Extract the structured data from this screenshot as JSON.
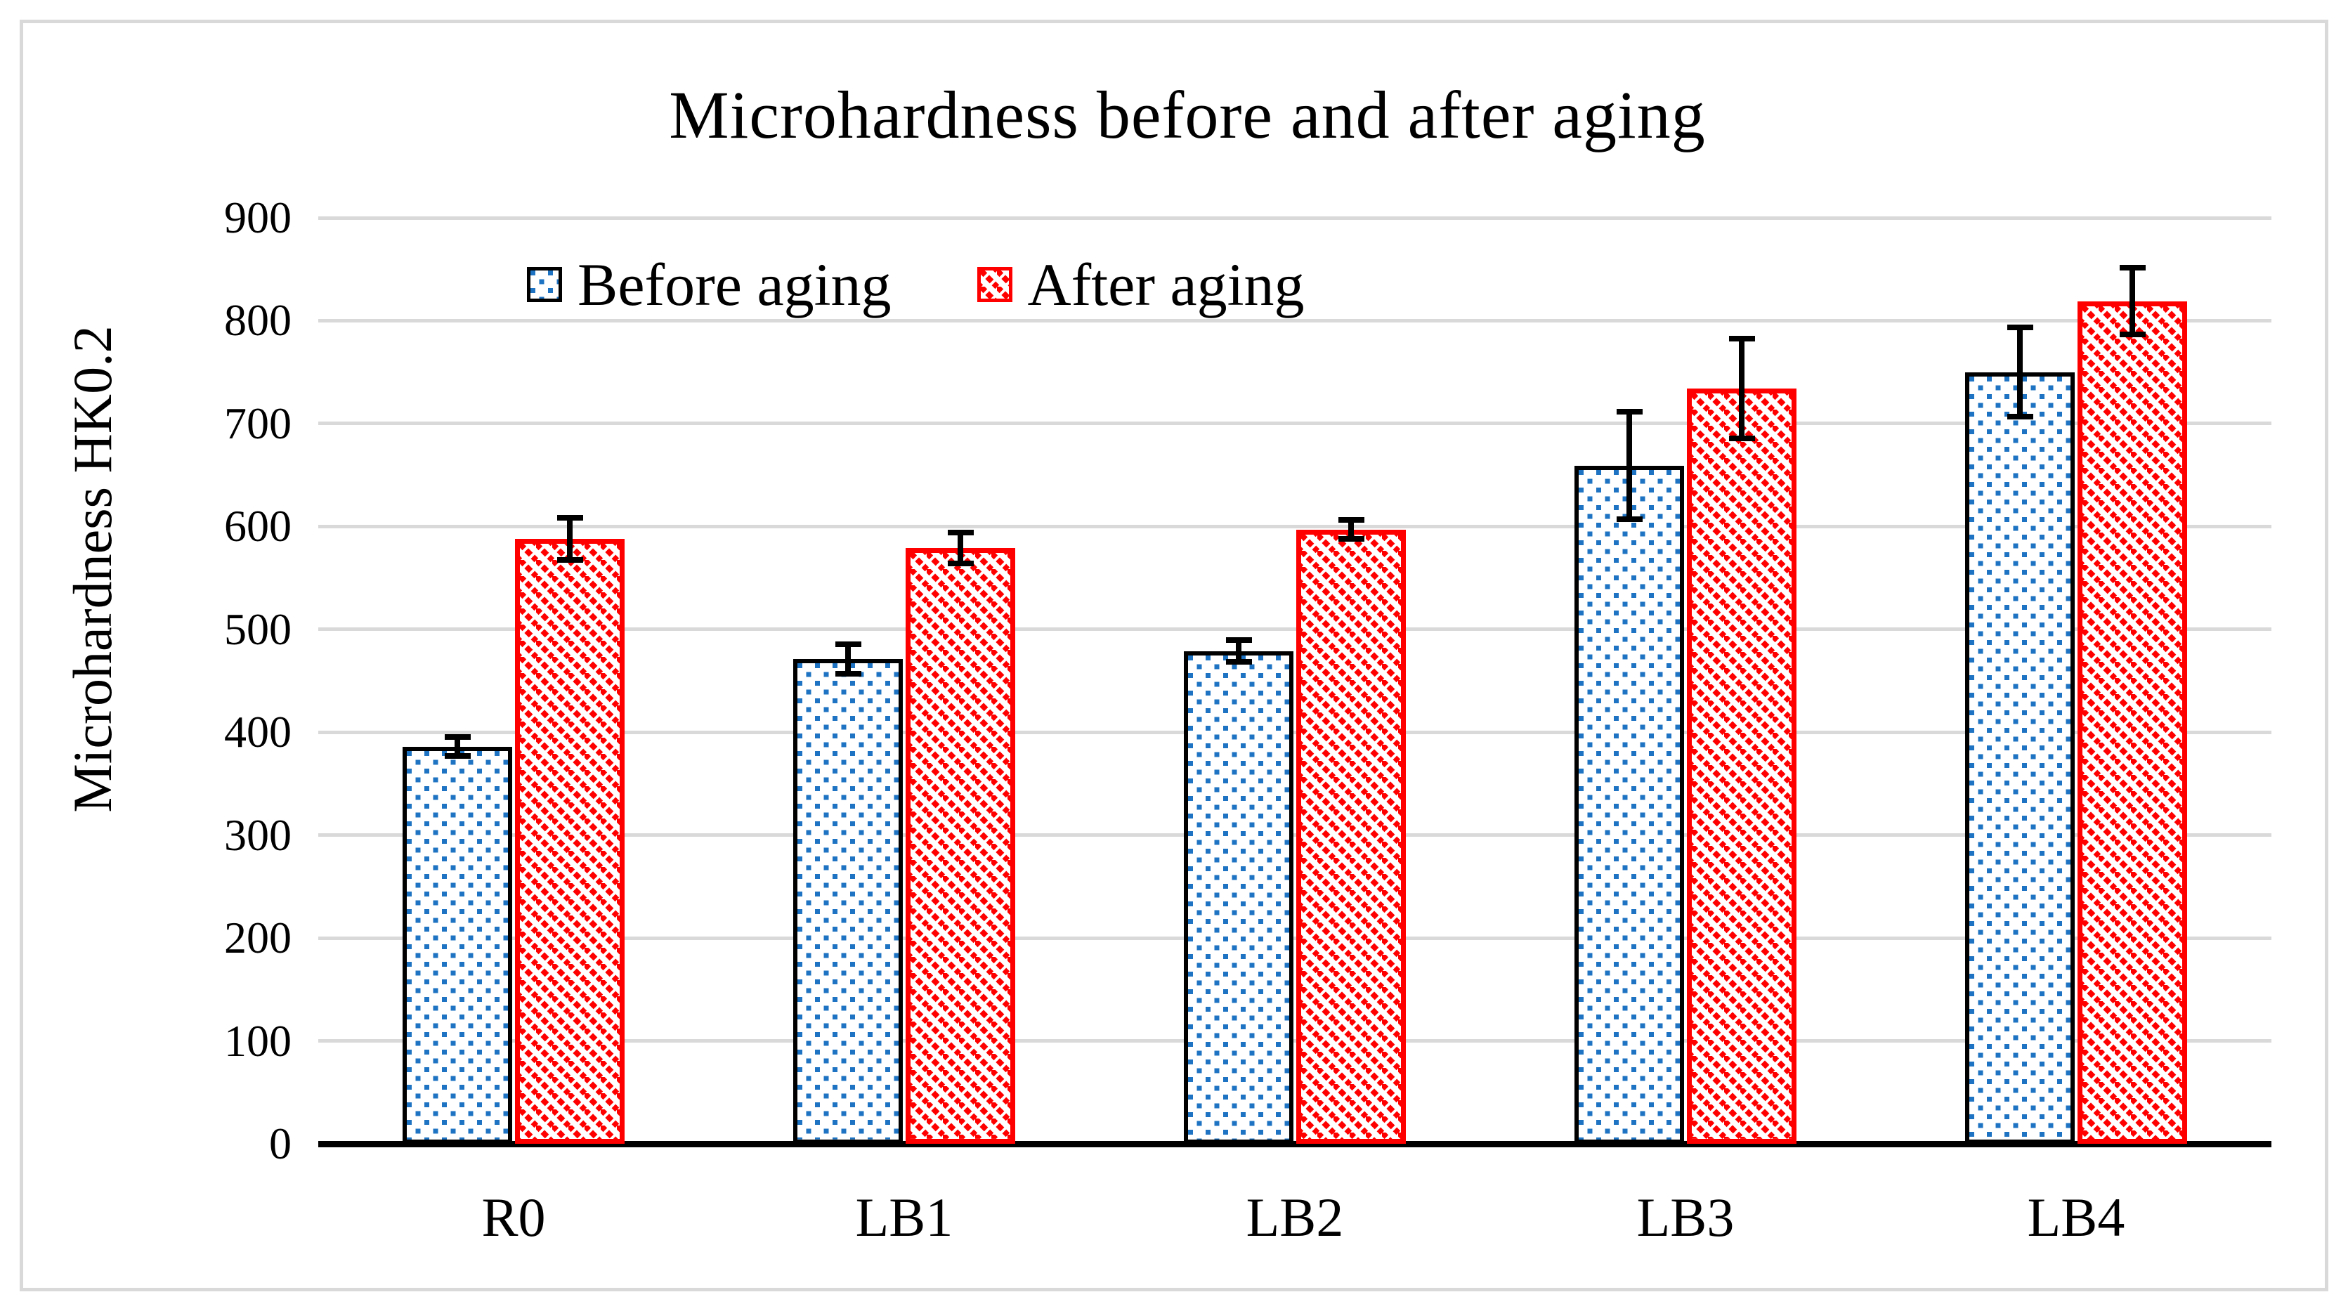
{
  "figure": {
    "title": "Microhardness before and after aging"
  },
  "legend": {
    "items": [
      {
        "label": "Before aging",
        "swatch": "blue-dotted-square"
      },
      {
        "label": "After aging",
        "swatch": "red-diagonal-hatch"
      }
    ]
  },
  "colors": {
    "before_pattern": "#1e73c2",
    "before_border": "#000000",
    "after_pattern": "#ff0000",
    "after_border": "#ff0000",
    "gridline": "#d9d9d9",
    "axis_line": "#000000",
    "frame_border": "#d9d9d9",
    "text": "#000000"
  },
  "chart_data": {
    "type": "bar",
    "title": "Microhardness before and after aging",
    "xlabel": "",
    "ylabel": "Microhardness HK0.2",
    "categories": [
      "R0",
      "LB1",
      "LB2",
      "LB3",
      "LB4"
    ],
    "series": [
      {
        "name": "Before aging",
        "values": [
          386,
          471,
          479,
          659,
          750
        ],
        "errors": [
          12,
          17,
          13,
          55,
          46
        ],
        "fill": "blue square-dot pattern, black outline"
      },
      {
        "name": "After aging",
        "values": [
          588,
          579,
          597,
          734,
          819
        ],
        "errors": [
          23,
          18,
          12,
          51,
          35
        ],
        "fill": "red diagonal hatch pattern, red outline"
      }
    ],
    "ylim": [
      0,
      900
    ],
    "ytick_step": 100,
    "ytick_labels": [
      "0",
      "100",
      "200",
      "300",
      "400",
      "500",
      "600",
      "700",
      "800",
      "900"
    ],
    "grid": true,
    "error_bars": true,
    "legend_position": "top-inside"
  }
}
